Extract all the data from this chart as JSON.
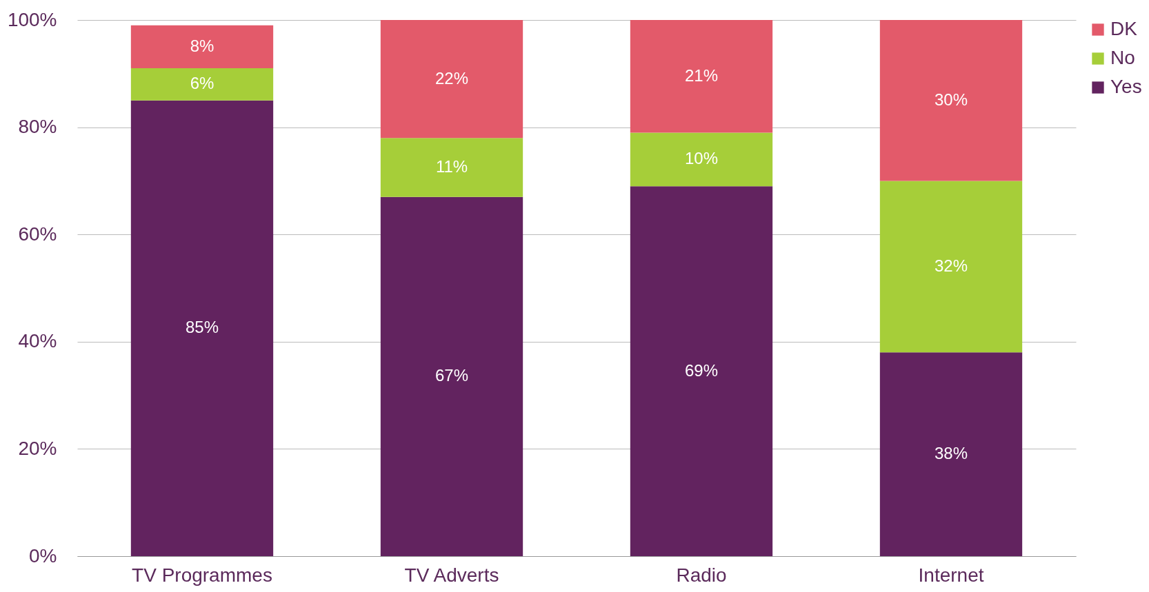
{
  "chart_data": {
    "type": "bar",
    "stacked": true,
    "categories": [
      "TV Programmes",
      "TV Adverts",
      "Radio",
      "Internet"
    ],
    "series": [
      {
        "name": "Yes",
        "color": "#62235f",
        "values": [
          85,
          67,
          69,
          38
        ],
        "value_labels": [
          "85%",
          "67%",
          "69%",
          "38%"
        ]
      },
      {
        "name": "No",
        "color": "#a6ce39",
        "values": [
          6,
          11,
          10,
          32
        ],
        "value_labels": [
          "6%",
          "11%",
          "10%",
          "32%"
        ]
      },
      {
        "name": "DK",
        "color": "#e35a6a",
        "values": [
          8,
          22,
          21,
          30
        ],
        "value_labels": [
          "8%",
          "22%",
          "21%",
          "30%"
        ]
      }
    ],
    "ylim": [
      0,
      100
    ],
    "yticks": [
      {
        "value": 0,
        "label": "0%"
      },
      {
        "value": 20,
        "label": "20%"
      },
      {
        "value": 40,
        "label": "40%"
      },
      {
        "value": 60,
        "label": "60%"
      },
      {
        "value": 80,
        "label": "80%"
      },
      {
        "value": 100,
        "label": "100%"
      }
    ],
    "grid": "y",
    "legend": "right"
  }
}
